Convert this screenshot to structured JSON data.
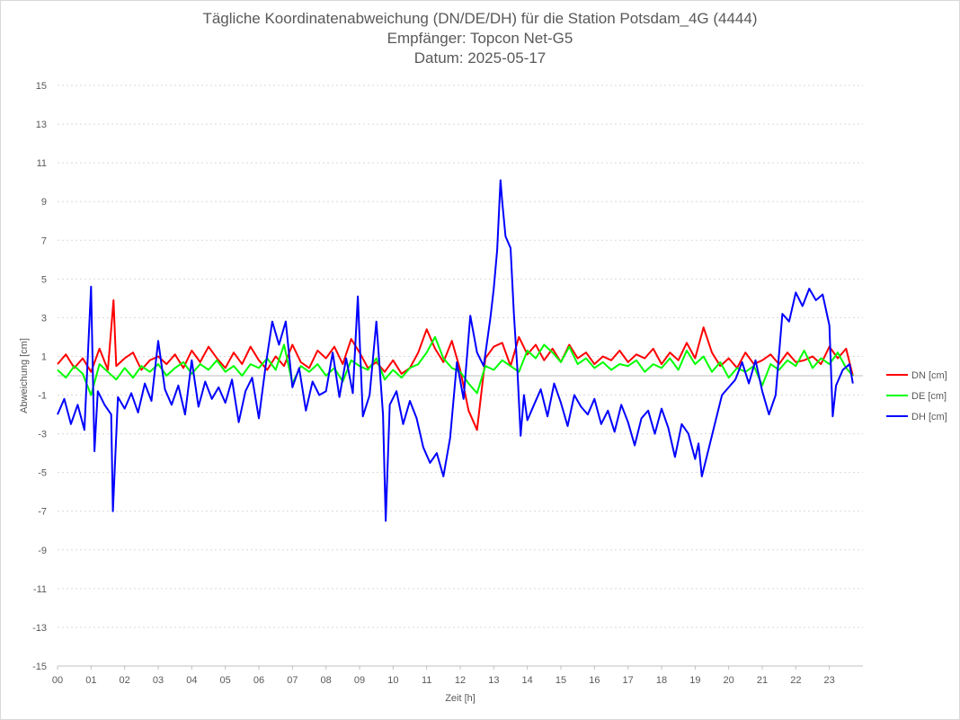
{
  "chart_data": {
    "type": "line",
    "title": "Tägliche Koordinatenabweichung (DN/DE/DH) für die Station Potsdam_4G (4444)",
    "subtitle": "Empfänger: Topcon Net-G5",
    "date_line": "Datum: 2025-05-17",
    "xlabel": "Zeit [h]",
    "ylabel": "Abweichung [cm]",
    "xlim": [
      0,
      24
    ],
    "ylim": [
      -15,
      15
    ],
    "x_ticks": [
      0,
      1,
      2,
      3,
      4,
      5,
      6,
      7,
      8,
      9,
      10,
      11,
      12,
      13,
      14,
      15,
      16,
      17,
      18,
      19,
      20,
      21,
      22,
      23
    ],
    "x_tick_labels": [
      "00",
      "01",
      "02",
      "03",
      "04",
      "05",
      "06",
      "07",
      "08",
      "09",
      "10",
      "11",
      "12",
      "13",
      "14",
      "15",
      "16",
      "17",
      "18",
      "19",
      "20",
      "21",
      "22",
      "23"
    ],
    "y_ticks": [
      15,
      13,
      11,
      9,
      7,
      5,
      3,
      1,
      -1,
      -3,
      -5,
      -7,
      -9,
      -11,
      -13,
      -15
    ],
    "y_tick_labels": [
      "15",
      "13",
      "11",
      "9",
      "7",
      "5",
      "3",
      "1",
      "-1",
      "-3",
      "-5",
      "-7",
      "-9",
      "-11",
      "-13",
      "-15"
    ],
    "grid": "horizontal dotted",
    "legend_position": "right",
    "series": [
      {
        "name": "DN [cm]",
        "color": "#ff0000",
        "x": [
          0,
          0.25,
          0.5,
          0.75,
          1,
          1.25,
          1.5,
          1.67,
          1.75,
          2,
          2.25,
          2.5,
          2.75,
          3,
          3.25,
          3.5,
          3.75,
          4,
          4.25,
          4.5,
          4.75,
          5,
          5.25,
          5.5,
          5.75,
          6,
          6.25,
          6.5,
          6.75,
          7,
          7.25,
          7.5,
          7.75,
          8,
          8.25,
          8.5,
          8.75,
          9,
          9.25,
          9.5,
          9.75,
          10,
          10.25,
          10.5,
          10.75,
          11,
          11.25,
          11.5,
          11.75,
          12,
          12.25,
          12.5,
          12.75,
          13,
          13.25,
          13.5,
          13.75,
          14,
          14.25,
          14.5,
          14.75,
          15,
          15.25,
          15.5,
          15.75,
          16,
          16.25,
          16.5,
          16.75,
          17,
          17.25,
          17.5,
          17.75,
          18,
          18.25,
          18.5,
          18.75,
          19,
          19.25,
          19.5,
          19.75,
          20,
          20.25,
          20.5,
          20.75,
          21,
          21.25,
          21.5,
          21.75,
          22,
          22.25,
          22.5,
          22.75,
          23,
          23.25,
          23.5,
          23.7
        ],
        "values": [
          0.6,
          1.1,
          0.4,
          0.9,
          0.2,
          1.4,
          0.3,
          3.9,
          0.5,
          0.9,
          1.2,
          0.3,
          0.8,
          1.0,
          0.6,
          1.1,
          0.4,
          1.3,
          0.7,
          1.5,
          0.9,
          0.4,
          1.2,
          0.6,
          1.5,
          0.8,
          0.3,
          1.0,
          0.5,
          1.6,
          0.7,
          0.4,
          1.3,
          0.9,
          1.5,
          0.6,
          1.9,
          1.2,
          0.4,
          0.7,
          0.2,
          0.8,
          0.1,
          0.4,
          1.2,
          2.4,
          1.4,
          0.7,
          1.8,
          0.3,
          -1.8,
          -2.8,
          0.9,
          1.5,
          1.7,
          0.5,
          2.0,
          1.1,
          1.6,
          0.8,
          1.4,
          0.7,
          1.6,
          0.9,
          1.2,
          0.6,
          1.0,
          0.8,
          1.3,
          0.7,
          1.1,
          0.9,
          1.4,
          0.6,
          1.2,
          0.8,
          1.7,
          0.9,
          2.5,
          1.2,
          0.5,
          0.9,
          0.4,
          1.2,
          0.6,
          0.8,
          1.1,
          0.6,
          1.2,
          0.7,
          0.8,
          1.0,
          0.6,
          1.5,
          0.9,
          1.4,
          0.0
        ]
      },
      {
        "name": "DE [cm]",
        "color": "#00ff00",
        "x": [
          0,
          0.25,
          0.5,
          0.75,
          1,
          1.25,
          1.5,
          1.75,
          2,
          2.25,
          2.5,
          2.75,
          3,
          3.25,
          3.5,
          3.75,
          4,
          4.25,
          4.5,
          4.75,
          5,
          5.25,
          5.5,
          5.75,
          6,
          6.25,
          6.5,
          6.75,
          7,
          7.25,
          7.5,
          7.75,
          8,
          8.25,
          8.5,
          8.75,
          9,
          9.25,
          9.5,
          9.75,
          10,
          10.25,
          10.5,
          10.75,
          11,
          11.25,
          11.5,
          11.75,
          12,
          12.25,
          12.5,
          12.75,
          13,
          13.25,
          13.5,
          13.75,
          14,
          14.25,
          14.5,
          14.75,
          15,
          15.25,
          15.5,
          15.75,
          16,
          16.25,
          16.5,
          16.75,
          17,
          17.25,
          17.5,
          17.75,
          18,
          18.25,
          18.5,
          18.75,
          19,
          19.25,
          19.5,
          19.75,
          20,
          20.25,
          20.5,
          20.75,
          21,
          21.25,
          21.5,
          21.75,
          22,
          22.25,
          22.5,
          22.75,
          23,
          23.25,
          23.5,
          23.7
        ],
        "values": [
          0.3,
          -0.1,
          0.5,
          0.1,
          -1.0,
          0.6,
          0.2,
          -0.2,
          0.4,
          -0.1,
          0.5,
          0.2,
          0.6,
          0.0,
          0.4,
          0.7,
          0.1,
          0.6,
          0.3,
          0.8,
          0.2,
          0.5,
          0.0,
          0.6,
          0.4,
          0.9,
          0.3,
          1.6,
          -0.4,
          0.5,
          0.2,
          0.6,
          0.0,
          0.4,
          -0.3,
          0.8,
          0.5,
          0.3,
          0.9,
          -0.2,
          0.3,
          -0.1,
          0.4,
          0.6,
          1.2,
          2.0,
          0.9,
          0.4,
          0.2,
          -0.4,
          -0.9,
          0.5,
          0.3,
          0.8,
          0.5,
          0.2,
          1.3,
          0.9,
          1.6,
          1.2,
          0.7,
          1.5,
          0.6,
          0.9,
          0.4,
          0.7,
          0.3,
          0.6,
          0.5,
          0.8,
          0.2,
          0.6,
          0.4,
          0.9,
          0.3,
          1.3,
          0.6,
          1.0,
          0.2,
          0.7,
          -0.1,
          0.4,
          0.2,
          0.5,
          -0.5,
          0.6,
          0.3,
          0.8,
          0.5,
          1.3,
          0.4,
          0.9,
          0.6,
          1.2,
          0.4,
          0.0
        ]
      },
      {
        "name": "DH [cm]",
        "color": "#0000ff",
        "x": [
          0,
          0.2,
          0.4,
          0.6,
          0.8,
          1.0,
          1.1,
          1.2,
          1.4,
          1.6,
          1.65,
          1.8,
          2.0,
          2.2,
          2.4,
          2.6,
          2.8,
          3.0,
          3.2,
          3.4,
          3.6,
          3.8,
          4.0,
          4.2,
          4.4,
          4.6,
          4.8,
          5.0,
          5.2,
          5.4,
          5.6,
          5.8,
          6.0,
          6.2,
          6.4,
          6.6,
          6.8,
          7.0,
          7.2,
          7.4,
          7.6,
          7.8,
          8.0,
          8.2,
          8.4,
          8.6,
          8.8,
          8.95,
          9.1,
          9.3,
          9.5,
          9.7,
          9.78,
          9.9,
          10.1,
          10.3,
          10.5,
          10.7,
          10.9,
          11.1,
          11.3,
          11.5,
          11.7,
          11.9,
          12.1,
          12.3,
          12.5,
          12.7,
          12.9,
          13.0,
          13.1,
          13.2,
          13.25,
          13.35,
          13.5,
          13.6,
          13.7,
          13.8,
          13.9,
          14.0,
          14.2,
          14.4,
          14.6,
          14.8,
          15.0,
          15.2,
          15.4,
          15.6,
          15.8,
          16.0,
          16.2,
          16.4,
          16.6,
          16.8,
          17.0,
          17.2,
          17.4,
          17.6,
          17.8,
          18.0,
          18.2,
          18.4,
          18.6,
          18.8,
          19.0,
          19.1,
          19.2,
          19.4,
          19.6,
          19.8,
          20.0,
          20.2,
          20.4,
          20.6,
          20.8,
          21.0,
          21.2,
          21.4,
          21.6,
          21.8,
          22.0,
          22.2,
          22.4,
          22.6,
          22.8,
          23.0,
          23.1,
          23.2,
          23.4,
          23.6,
          23.7
        ],
        "values": [
          -2.0,
          -1.2,
          -2.5,
          -1.5,
          -2.8,
          4.6,
          -3.9,
          -0.8,
          -1.5,
          -2.0,
          -7.0,
          -1.1,
          -1.7,
          -0.9,
          -1.9,
          -0.4,
          -1.3,
          1.8,
          -0.7,
          -1.5,
          -0.5,
          -2.0,
          0.8,
          -1.6,
          -0.3,
          -1.2,
          -0.6,
          -1.4,
          -0.2,
          -2.4,
          -0.8,
          -0.1,
          -2.2,
          0.5,
          2.8,
          1.6,
          2.8,
          -0.6,
          0.4,
          -1.8,
          -0.3,
          -1.0,
          -0.8,
          1.2,
          -1.1,
          0.9,
          -0.9,
          4.1,
          -2.1,
          -1.0,
          2.8,
          -2.0,
          -7.5,
          -1.5,
          -0.8,
          -2.5,
          -1.3,
          -2.2,
          -3.7,
          -4.5,
          -4.0,
          -5.2,
          -3.2,
          0.7,
          -1.2,
          3.1,
          1.2,
          0.5,
          3.0,
          4.5,
          6.5,
          10.1,
          9.0,
          7.2,
          6.6,
          3.2,
          0.4,
          -3.1,
          -1.0,
          -2.3,
          -1.5,
          -0.7,
          -2.1,
          -0.4,
          -1.4,
          -2.6,
          -1.0,
          -1.6,
          -2.0,
          -1.2,
          -2.5,
          -1.8,
          -2.9,
          -1.5,
          -2.4,
          -3.6,
          -2.2,
          -1.8,
          -3.0,
          -1.7,
          -2.7,
          -4.2,
          -2.5,
          -3.0,
          -4.3,
          -3.5,
          -5.2,
          -3.8,
          -2.4,
          -1.0,
          -0.6,
          -0.2,
          0.7,
          -0.4,
          0.8,
          -0.8,
          -2.0,
          -1.0,
          3.2,
          2.8,
          4.3,
          3.6,
          4.5,
          3.9,
          4.2,
          2.6,
          -2.1,
          -0.5,
          0.3,
          0.6,
          -0.4
        ]
      }
    ]
  }
}
